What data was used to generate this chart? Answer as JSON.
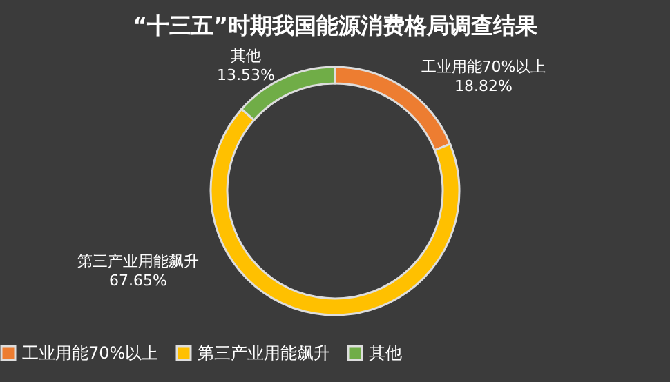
{
  "chart_data": {
    "type": "donut",
    "title": "“十三五”时期我国能源消费格局调查结果",
    "categories": [
      "工业用能70%以上",
      "第三产业用能飙升",
      "其他"
    ],
    "values": [
      18.82,
      67.65,
      13.53
    ],
    "colors": [
      "#ed7d31",
      "#ffc000",
      "#70ad47"
    ],
    "value_labels": [
      "18.82%",
      "67.65%",
      "13.53%"
    ],
    "legend": "bottom"
  }
}
